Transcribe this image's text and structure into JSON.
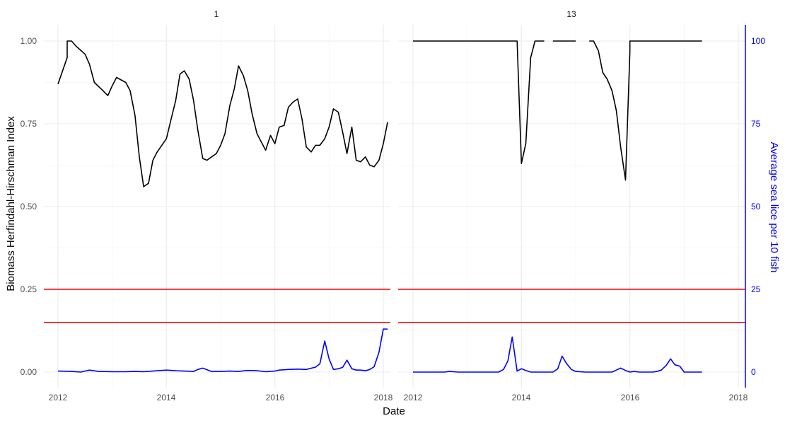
{
  "chart_data": {
    "type": "line",
    "xlabel": "Date",
    "ylabel": "Biomass Herfindahl-Hirschman Index",
    "y2label": "Average sea lice per 10 fish",
    "x_ticks": [
      "2012",
      "2014",
      "2016",
      "2018"
    ],
    "ylim": [
      0,
      1
    ],
    "y_ticks": [
      "0.00",
      "0.25",
      "0.50",
      "0.75",
      "1.00"
    ],
    "y2lim": [
      0,
      100
    ],
    "y2_ticks": [
      "0",
      "25",
      "50",
      "75",
      "100"
    ],
    "grid": true,
    "reference_lines": [
      {
        "y": 0.25,
        "color": "#ff0000"
      },
      {
        "y": 0.15,
        "color": "#ff0000"
      }
    ],
    "colors": {
      "hhi": "#000000",
      "lice": "#0000ff",
      "reference": "#ff0000",
      "secondary_axis": "#0000ff"
    },
    "panels": [
      {
        "label": "1",
        "hhi": [
          [
            2012.0,
            0.87
          ],
          [
            2012.17,
            0.95
          ],
          [
            2012.17,
            1.0
          ],
          [
            2012.25,
            1.0
          ],
          [
            2012.33,
            0.985
          ],
          [
            2012.5,
            0.96
          ],
          [
            2012.58,
            0.93
          ],
          [
            2012.67,
            0.875
          ],
          [
            2012.83,
            0.85
          ],
          [
            2012.92,
            0.835
          ],
          [
            2013.0,
            0.865
          ],
          [
            2013.08,
            0.89
          ],
          [
            2013.25,
            0.875
          ],
          [
            2013.33,
            0.85
          ],
          [
            2013.42,
            0.775
          ],
          [
            2013.5,
            0.65
          ],
          [
            2013.58,
            0.56
          ],
          [
            2013.67,
            0.57
          ],
          [
            2013.75,
            0.64
          ],
          [
            2013.83,
            0.665
          ],
          [
            2014.0,
            0.705
          ],
          [
            2014.08,
            0.76
          ],
          [
            2014.17,
            0.82
          ],
          [
            2014.25,
            0.9
          ],
          [
            2014.33,
            0.91
          ],
          [
            2014.42,
            0.885
          ],
          [
            2014.5,
            0.82
          ],
          [
            2014.58,
            0.73
          ],
          [
            2014.67,
            0.645
          ],
          [
            2014.75,
            0.64
          ],
          [
            2014.83,
            0.65
          ],
          [
            2014.92,
            0.66
          ],
          [
            2015.0,
            0.685
          ],
          [
            2015.08,
            0.72
          ],
          [
            2015.17,
            0.805
          ],
          [
            2015.25,
            0.855
          ],
          [
            2015.33,
            0.925
          ],
          [
            2015.42,
            0.895
          ],
          [
            2015.5,
            0.85
          ],
          [
            2015.58,
            0.78
          ],
          [
            2015.67,
            0.72
          ],
          [
            2015.75,
            0.695
          ],
          [
            2015.83,
            0.67
          ],
          [
            2015.92,
            0.715
          ],
          [
            2016.0,
            0.69
          ],
          [
            2016.08,
            0.74
          ],
          [
            2016.17,
            0.745
          ],
          [
            2016.25,
            0.8
          ],
          [
            2016.33,
            0.815
          ],
          [
            2016.42,
            0.825
          ],
          [
            2016.5,
            0.765
          ],
          [
            2016.58,
            0.68
          ],
          [
            2016.67,
            0.665
          ],
          [
            2016.75,
            0.685
          ],
          [
            2016.83,
            0.685
          ],
          [
            2016.92,
            0.705
          ],
          [
            2017.0,
            0.74
          ],
          [
            2017.08,
            0.795
          ],
          [
            2017.17,
            0.785
          ],
          [
            2017.25,
            0.725
          ],
          [
            2017.33,
            0.66
          ],
          [
            2017.42,
            0.74
          ],
          [
            2017.5,
            0.64
          ],
          [
            2017.58,
            0.635
          ],
          [
            2017.67,
            0.65
          ],
          [
            2017.75,
            0.625
          ],
          [
            2017.83,
            0.62
          ],
          [
            2017.92,
            0.64
          ],
          [
            2018.0,
            0.69
          ],
          [
            2018.08,
            0.755
          ]
        ],
        "lice": [
          [
            2012.0,
            0.3
          ],
          [
            2012.25,
            0.2
          ],
          [
            2012.42,
            0.0
          ],
          [
            2012.58,
            0.6
          ],
          [
            2012.75,
            0.2
          ],
          [
            2013.0,
            0.1
          ],
          [
            2013.25,
            0.1
          ],
          [
            2013.42,
            0.2
          ],
          [
            2013.58,
            0.1
          ],
          [
            2013.75,
            0.3
          ],
          [
            2014.0,
            0.6
          ],
          [
            2014.17,
            0.4
          ],
          [
            2014.33,
            0.3
          ],
          [
            2014.5,
            0.2
          ],
          [
            2014.58,
            0.8
          ],
          [
            2014.67,
            1.2
          ],
          [
            2014.83,
            0.2
          ],
          [
            2015.0,
            0.2
          ],
          [
            2015.17,
            0.3
          ],
          [
            2015.33,
            0.2
          ],
          [
            2015.5,
            0.5
          ],
          [
            2015.67,
            0.4
          ],
          [
            2015.83,
            0.1
          ],
          [
            2016.0,
            0.3
          ],
          [
            2016.08,
            0.6
          ],
          [
            2016.25,
            0.8
          ],
          [
            2016.42,
            0.9
          ],
          [
            2016.58,
            0.8
          ],
          [
            2016.75,
            1.5
          ],
          [
            2016.83,
            2.5
          ],
          [
            2016.92,
            9.4
          ],
          [
            2017.0,
            4.0
          ],
          [
            2017.08,
            0.8
          ],
          [
            2017.17,
            1.0
          ],
          [
            2017.25,
            1.4
          ],
          [
            2017.33,
            3.6
          ],
          [
            2017.42,
            1.0
          ],
          [
            2017.5,
            0.6
          ],
          [
            2017.58,
            0.6
          ],
          [
            2017.67,
            0.4
          ],
          [
            2017.75,
            0.8
          ],
          [
            2017.83,
            1.6
          ],
          [
            2017.92,
            6.0
          ],
          [
            2018.0,
            13.0
          ],
          [
            2018.08,
            13.0
          ]
        ]
      },
      {
        "label": "13",
        "hhi_segments": [
          [
            [
              2012.0,
              1.0
            ],
            [
              2013.92,
              1.0
            ],
            [
              2014.0,
              0.63
            ],
            [
              2014.08,
              0.69
            ],
            [
              2014.17,
              0.95
            ],
            [
              2014.25,
              1.0
            ],
            [
              2014.42,
              1.0
            ]
          ],
          [
            [
              2014.58,
              1.0
            ],
            [
              2015.0,
              1.0
            ]
          ],
          [
            [
              2015.25,
              1.0
            ],
            [
              2015.33,
              1.0
            ],
            [
              2015.42,
              0.97
            ],
            [
              2015.5,
              0.905
            ],
            [
              2015.58,
              0.885
            ],
            [
              2015.67,
              0.85
            ],
            [
              2015.75,
              0.79
            ],
            [
              2015.83,
              0.68
            ],
            [
              2015.92,
              0.58
            ],
            [
              2016.0,
              0.97
            ],
            [
              2016.0,
              1.0
            ],
            [
              2017.33,
              1.0
            ]
          ]
        ],
        "lice": [
          [
            2012.0,
            0.0
          ],
          [
            2012.58,
            0.0
          ],
          [
            2012.67,
            0.2
          ],
          [
            2012.83,
            0.0
          ],
          [
            2013.58,
            0.0
          ],
          [
            2013.67,
            0.8
          ],
          [
            2013.75,
            3.4
          ],
          [
            2013.83,
            10.6
          ],
          [
            2013.92,
            0.3
          ],
          [
            2014.0,
            1.0
          ],
          [
            2014.08,
            0.5
          ],
          [
            2014.17,
            0.0
          ],
          [
            2014.58,
            0.0
          ],
          [
            2014.67,
            1.0
          ],
          [
            2014.75,
            4.8
          ],
          [
            2014.83,
            2.6
          ],
          [
            2014.92,
            0.8
          ],
          [
            2015.0,
            0.2
          ],
          [
            2015.17,
            0.0
          ],
          [
            2015.67,
            0.0
          ],
          [
            2015.75,
            0.6
          ],
          [
            2015.83,
            1.2
          ],
          [
            2015.92,
            0.5
          ],
          [
            2016.0,
            0.0
          ],
          [
            2016.08,
            0.2
          ],
          [
            2016.17,
            0.0
          ],
          [
            2016.42,
            0.0
          ],
          [
            2016.5,
            0.2
          ],
          [
            2016.58,
            0.6
          ],
          [
            2016.67,
            2.0
          ],
          [
            2016.75,
            4.0
          ],
          [
            2016.83,
            2.2
          ],
          [
            2016.92,
            1.8
          ],
          [
            2017.0,
            0.0
          ],
          [
            2017.33,
            0.0
          ]
        ]
      }
    ]
  }
}
